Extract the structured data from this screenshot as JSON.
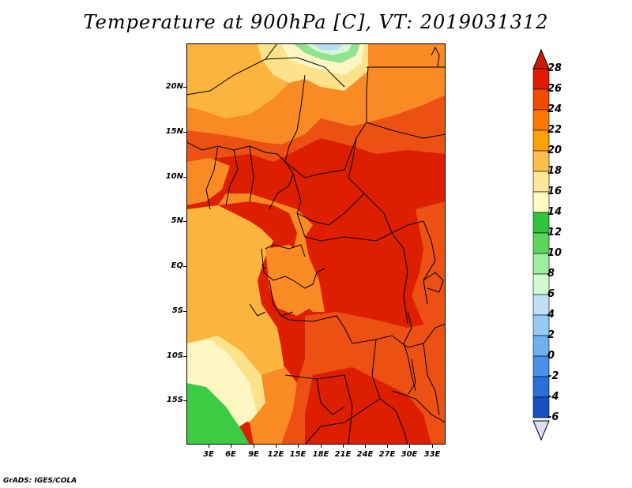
{
  "title": "Temperature at 900hPa [C], VT: 2019031312",
  "footer": "GrADS: IGES/COLA",
  "lat_labels": [
    "20N",
    "15N",
    "10N",
    "5N",
    "EQ",
    "5S",
    "10S",
    "15S"
  ],
  "lon_labels": [
    "3E",
    "6E",
    "9E",
    "12E",
    "15E",
    "18E",
    "21E",
    "24E",
    "27E",
    "30E",
    "33E"
  ],
  "colorbar": {
    "labels": [
      "28",
      "26",
      "24",
      "22",
      "20",
      "18",
      "16",
      "14",
      "12",
      "10",
      "8",
      "6",
      "4",
      "2",
      "0",
      "-2",
      "-4",
      "-6"
    ],
    "colors": [
      "#a50000",
      "#e11a00",
      "#f04b00",
      "#fa7800",
      "#fda000",
      "#fec04a",
      "#fee69a",
      "#fffcc0",
      "#2fc43c",
      "#5cd65c",
      "#9cef9c",
      "#d2f9d2",
      "#bde0f7",
      "#97c9f5",
      "#6eb1f0",
      "#4890e8",
      "#2a6fd8",
      "#1450c2",
      "#0a2f99",
      "#0a1669"
    ],
    "top_color": "#c81e00",
    "bottom_color": "#dcdcf8"
  },
  "map_colors": {
    "red": "#de1e00",
    "dark_orange": "#ec5012",
    "orange": "#f98a24",
    "light_orange": "#fbb43e",
    "yellow": "#fde28c",
    "pale_yellow": "#fff6c4",
    "green": "#3ccc44",
    "light_green": "#8fe58f",
    "pale_green": "#d6f7d6",
    "light_blue": "#b8dcf5"
  }
}
